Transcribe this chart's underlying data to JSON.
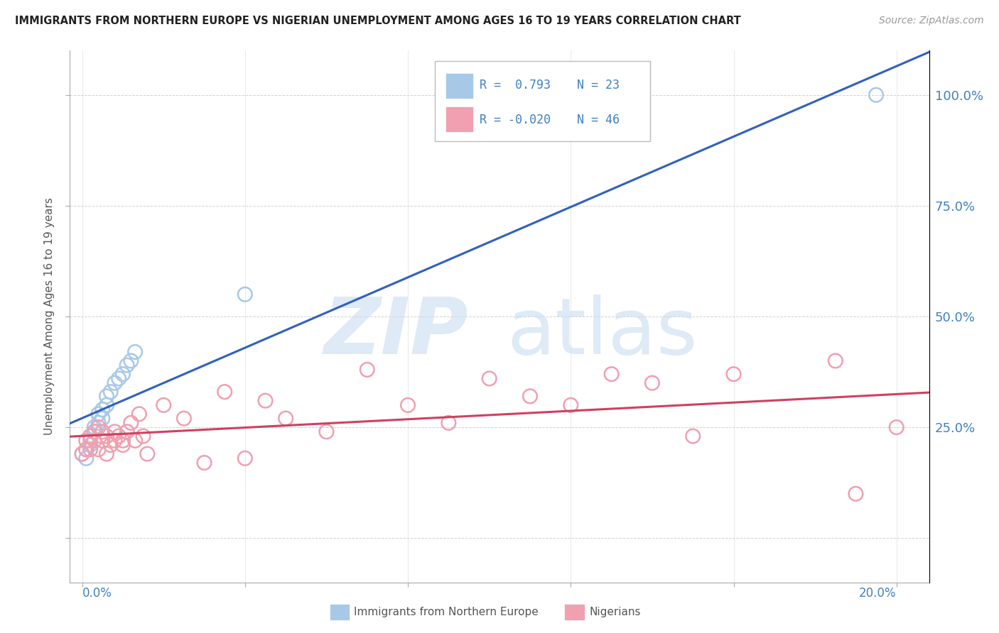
{
  "title": "IMMIGRANTS FROM NORTHERN EUROPE VS NIGERIAN UNEMPLOYMENT AMONG AGES 16 TO 19 YEARS CORRELATION CHART",
  "source": "Source: ZipAtlas.com",
  "ylabel_ticks": [
    0.0,
    0.25,
    0.5,
    0.75,
    1.0
  ],
  "ylabel_labels": [
    "",
    "25.0%",
    "50.0%",
    "75.0%",
    "100.0%"
  ],
  "legend_label_blue": "Immigrants from Northern Europe",
  "legend_label_pink": "Nigerians",
  "legend_r_blue": "R =  0.793",
  "legend_n_blue": "N = 23",
  "legend_r_pink": "R = -0.020",
  "legend_n_pink": "N = 46",
  "blue_color": "#A8C8E8",
  "pink_color": "#F0A0B0",
  "blue_line_color": "#3060C0",
  "pink_line_color": "#D04060",
  "text_color": "#4080C0",
  "grid_color": "#CCCCCC",
  "background_color": "#FFFFFF",
  "blue_x": [
    0.0,
    0.001,
    0.001,
    0.002,
    0.002,
    0.002,
    0.003,
    0.003,
    0.004,
    0.004,
    0.005,
    0.005,
    0.006,
    0.006,
    0.007,
    0.008,
    0.009,
    0.01,
    0.011,
    0.012,
    0.013,
    0.04,
    0.195
  ],
  "blue_y": [
    0.19,
    0.18,
    0.2,
    0.21,
    0.22,
    0.23,
    0.24,
    0.25,
    0.26,
    0.28,
    0.27,
    0.29,
    0.3,
    0.32,
    0.33,
    0.35,
    0.36,
    0.37,
    0.39,
    0.4,
    0.42,
    0.55,
    1.0
  ],
  "pink_x": [
    0.0,
    0.001,
    0.001,
    0.002,
    0.002,
    0.003,
    0.003,
    0.004,
    0.004,
    0.005,
    0.005,
    0.006,
    0.006,
    0.007,
    0.008,
    0.008,
    0.009,
    0.01,
    0.01,
    0.011,
    0.012,
    0.013,
    0.014,
    0.015,
    0.016,
    0.02,
    0.025,
    0.03,
    0.035,
    0.04,
    0.045,
    0.05,
    0.06,
    0.07,
    0.08,
    0.09,
    0.1,
    0.11,
    0.12,
    0.13,
    0.14,
    0.15,
    0.16,
    0.185,
    0.19,
    0.2
  ],
  "pink_y": [
    0.19,
    0.2,
    0.22,
    0.2,
    0.23,
    0.22,
    0.24,
    0.2,
    0.25,
    0.22,
    0.24,
    0.19,
    0.23,
    0.21,
    0.24,
    0.22,
    0.23,
    0.22,
    0.21,
    0.24,
    0.26,
    0.22,
    0.28,
    0.23,
    0.19,
    0.3,
    0.27,
    0.17,
    0.33,
    0.18,
    0.31,
    0.27,
    0.24,
    0.38,
    0.3,
    0.26,
    0.36,
    0.32,
    0.3,
    0.37,
    0.35,
    0.23,
    0.37,
    0.4,
    0.1,
    0.25
  ],
  "xlim_min": -0.003,
  "xlim_max": 0.208,
  "ylim_min": -0.1,
  "ylim_max": 1.1
}
